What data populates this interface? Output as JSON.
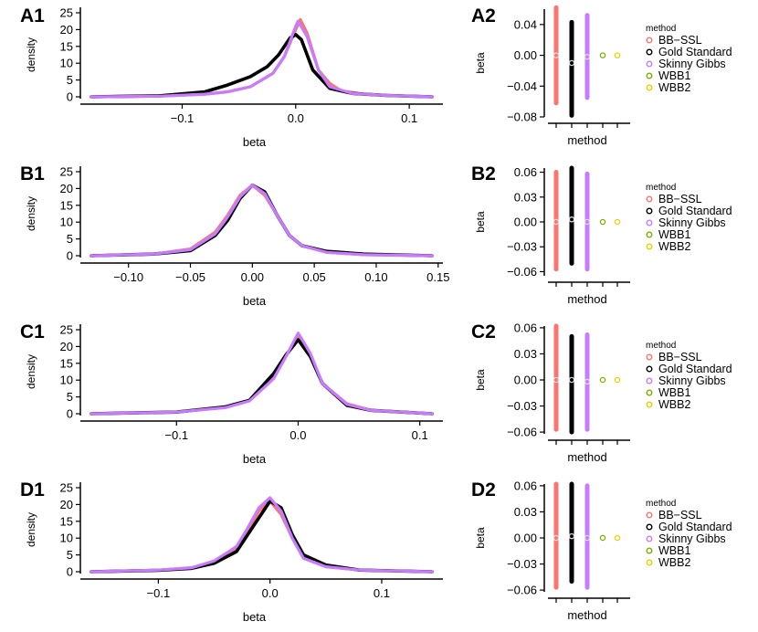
{
  "legend": {
    "title": "method",
    "items": [
      {
        "label": "BB−SSL",
        "color": "#F8766D"
      },
      {
        "label": "Gold Standard",
        "color": "#000000"
      },
      {
        "label": "Skinny Gibbs",
        "color": "#C77CFF"
      },
      {
        "label": "WBB1",
        "color": "#7CAE00"
      },
      {
        "label": "WBB2",
        "color": "#E7D000"
      }
    ]
  },
  "chart_data": [
    {
      "panel": "A1",
      "type": "line",
      "xlabel": "beta",
      "ylabel": "density",
      "xlim": [
        -0.18,
        0.12
      ],
      "ylim": [
        0,
        25
      ],
      "xticks": [
        -0.1,
        0.0,
        0.1
      ],
      "xtick_labels": [
        "−0.1",
        "0.0",
        "0.1"
      ],
      "yticks": [
        0,
        5,
        10,
        15,
        20,
        25
      ],
      "series": [
        {
          "name": "BB−SSL",
          "color": "#F8766D",
          "x": [
            -0.18,
            -0.12,
            -0.08,
            -0.06,
            -0.04,
            -0.02,
            -0.01,
            0.0,
            0.004,
            0.01,
            0.02,
            0.03,
            0.04,
            0.06,
            0.09,
            0.12
          ],
          "y": [
            0,
            0.2,
            0.8,
            1.5,
            3,
            7,
            12,
            20,
            23,
            19,
            8,
            4,
            1.8,
            0.8,
            0.3,
            0
          ]
        },
        {
          "name": "Gold Standard",
          "color": "#000000",
          "x": [
            -0.18,
            -0.12,
            -0.08,
            -0.06,
            -0.04,
            -0.025,
            -0.015,
            -0.005,
            0.0,
            0.005,
            0.015,
            0.03,
            0.05,
            0.08,
            0.12
          ],
          "y": [
            0,
            0.3,
            1.5,
            3.5,
            6,
            9,
            12.5,
            17.5,
            18.5,
            17,
            8,
            2.5,
            1,
            0.4,
            0
          ]
        },
        {
          "name": "Skinny Gibbs",
          "color": "#C77CFF",
          "x": [
            -0.18,
            -0.12,
            -0.08,
            -0.06,
            -0.04,
            -0.02,
            -0.01,
            0.0,
            0.002,
            0.01,
            0.02,
            0.03,
            0.05,
            0.08,
            0.12
          ],
          "y": [
            0,
            0.2,
            0.8,
            1.5,
            3,
            7,
            12,
            21,
            22.5,
            18,
            8,
            3,
            1,
            0.4,
            0
          ]
        }
      ],
      "interval": {
        "ylabel": "beta",
        "xlabel": "method",
        "ylim": [
          -0.08,
          0.06
        ],
        "yticks": [
          -0.08,
          -0.04,
          0.0,
          0.04
        ],
        "ytick_labels": [
          "−0.08",
          "−0.04",
          "0.00",
          "0.04"
        ],
        "methods": [
          "BB−SSL",
          "Gold Standard",
          "Skinny Gibbs",
          "WBB1",
          "WBB2"
        ],
        "low": [
          -0.062,
          -0.078,
          -0.055,
          null,
          null
        ],
        "high": [
          0.062,
          0.043,
          0.052,
          null,
          null
        ],
        "point": [
          0.0,
          -0.01,
          -0.002,
          0.0,
          0.0
        ]
      }
    },
    {
      "panel": "B1",
      "type": "line",
      "xlabel": "beta",
      "ylabel": "density",
      "xlim": [
        -0.13,
        0.145
      ],
      "ylim": [
        0,
        25
      ],
      "xticks": [
        -0.1,
        -0.05,
        0.0,
        0.05,
        0.1,
        0.15
      ],
      "xtick_labels": [
        "−0.10",
        "−0.05",
        "0.00",
        "0.05",
        "0.10",
        "0.15"
      ],
      "yticks": [
        0,
        5,
        10,
        15,
        20,
        25
      ],
      "series": [
        {
          "name": "BB−SSL",
          "color": "#F8766D",
          "x": [
            -0.13,
            -0.08,
            -0.05,
            -0.03,
            -0.02,
            -0.01,
            0.0,
            0.01,
            0.02,
            0.03,
            0.04,
            0.06,
            0.09,
            0.145
          ],
          "y": [
            0,
            0.5,
            2,
            7,
            12,
            18,
            21,
            18,
            12,
            6,
            3,
            1,
            0.3,
            0
          ]
        },
        {
          "name": "Gold Standard",
          "color": "#000000",
          "x": [
            -0.13,
            -0.08,
            -0.05,
            -0.03,
            -0.02,
            -0.01,
            0.0,
            0.01,
            0.02,
            0.03,
            0.04,
            0.06,
            0.09,
            0.145
          ],
          "y": [
            0,
            0.5,
            1.5,
            6,
            10.5,
            17,
            21,
            19,
            12,
            6,
            3,
            1.3,
            0.5,
            0
          ]
        },
        {
          "name": "Skinny Gibbs",
          "color": "#C77CFF",
          "x": [
            -0.13,
            -0.08,
            -0.05,
            -0.03,
            -0.02,
            -0.01,
            0.0,
            0.01,
            0.02,
            0.03,
            0.04,
            0.06,
            0.09,
            0.145
          ],
          "y": [
            0,
            0.5,
            1.8,
            6.5,
            11.5,
            17.5,
            21,
            18.5,
            12,
            6,
            3,
            1,
            0.3,
            0
          ]
        }
      ],
      "interval": {
        "ylabel": "beta",
        "xlabel": "method",
        "ylim": [
          -0.065,
          0.065
        ],
        "yticks": [
          -0.06,
          -0.03,
          0.0,
          0.03,
          0.06
        ],
        "ytick_labels": [
          "−0.06",
          "−0.03",
          "0.00",
          "0.03",
          "0.06"
        ],
        "methods": [
          "BB−SSL",
          "Gold Standard",
          "Skinny Gibbs",
          "WBB1",
          "WBB2"
        ],
        "low": [
          -0.057,
          -0.05,
          -0.057,
          null,
          null
        ],
        "high": [
          0.06,
          0.065,
          0.058,
          null,
          null
        ],
        "point": [
          0.0,
          0.003,
          0.0,
          0.0,
          0.0
        ]
      }
    },
    {
      "panel": "C1",
      "type": "line",
      "xlabel": "beta",
      "ylabel": "density",
      "xlim": [
        -0.17,
        0.11
      ],
      "ylim": [
        0,
        25
      ],
      "xticks": [
        -0.1,
        0.0,
        0.1
      ],
      "xtick_labels": [
        "−0.1",
        "0.0",
        "0.1"
      ],
      "yticks": [
        0,
        5,
        10,
        15,
        20,
        25
      ],
      "series": [
        {
          "name": "BB−SSL",
          "color": "#F8766D",
          "x": [
            -0.17,
            -0.1,
            -0.06,
            -0.04,
            -0.02,
            -0.01,
            0.0,
            0.01,
            0.02,
            0.04,
            0.06,
            0.11
          ],
          "y": [
            0,
            0.5,
            2,
            4,
            11,
            17,
            23,
            17,
            9,
            3,
            1,
            0
          ]
        },
        {
          "name": "Gold Standard",
          "color": "#000000",
          "x": [
            -0.17,
            -0.1,
            -0.06,
            -0.04,
            -0.02,
            -0.01,
            0.0,
            0.01,
            0.02,
            0.04,
            0.06,
            0.11
          ],
          "y": [
            0,
            0.5,
            2,
            4,
            12,
            17.5,
            22,
            17,
            9,
            2.5,
            1,
            0
          ]
        },
        {
          "name": "Skinny Gibbs",
          "color": "#C77CFF",
          "x": [
            -0.17,
            -0.1,
            -0.06,
            -0.04,
            -0.02,
            -0.01,
            0.0,
            0.01,
            0.02,
            0.04,
            0.06,
            0.11
          ],
          "y": [
            0,
            0.5,
            1.8,
            3.8,
            10.5,
            17,
            24,
            18,
            9,
            2.8,
            1,
            0
          ]
        }
      ],
      "interval": {
        "ylabel": "beta",
        "xlabel": "method",
        "ylim": [
          -0.062,
          0.062
        ],
        "yticks": [
          -0.06,
          -0.03,
          0.0,
          0.03,
          0.06
        ],
        "ytick_labels": [
          "−0.06",
          "−0.03",
          "0.00",
          "0.03",
          "0.06"
        ],
        "methods": [
          "BB−SSL",
          "Gold Standard",
          "Skinny Gibbs",
          "WBB1",
          "WBB2"
        ],
        "low": [
          -0.057,
          -0.06,
          -0.057,
          null,
          null
        ],
        "high": [
          0.062,
          0.05,
          0.052,
          null,
          null
        ],
        "point": [
          0.0,
          0.0,
          -0.002,
          0.0,
          0.0
        ]
      }
    },
    {
      "panel": "D1",
      "type": "line",
      "xlabel": "beta",
      "ylabel": "density",
      "xlim": [
        -0.16,
        0.145
      ],
      "ylim": [
        0,
        25
      ],
      "xticks": [
        -0.1,
        0.0,
        0.1
      ],
      "xtick_labels": [
        "−0.1",
        "0.0",
        "0.1"
      ],
      "yticks": [
        0,
        5,
        10,
        15,
        20,
        25
      ],
      "series": [
        {
          "name": "BB−SSL",
          "color": "#F8766D",
          "x": [
            -0.16,
            -0.1,
            -0.07,
            -0.05,
            -0.03,
            -0.02,
            -0.01,
            0.0,
            0.01,
            0.02,
            0.03,
            0.05,
            0.08,
            0.145
          ],
          "y": [
            0,
            0.5,
            1.2,
            3,
            7,
            12,
            18,
            21,
            17,
            10,
            4,
            1.5,
            0.5,
            0
          ]
        },
        {
          "name": "Gold Standard",
          "color": "#000000",
          "x": [
            -0.16,
            -0.1,
            -0.07,
            -0.05,
            -0.03,
            -0.02,
            -0.01,
            0.0,
            0.01,
            0.02,
            0.03,
            0.05,
            0.08,
            0.145
          ],
          "y": [
            0,
            0.4,
            1,
            2.5,
            6,
            11,
            16,
            21,
            19,
            11,
            5,
            2,
            0.5,
            0
          ]
        },
        {
          "name": "Skinny Gibbs",
          "color": "#C77CFF",
          "x": [
            -0.16,
            -0.1,
            -0.07,
            -0.05,
            -0.03,
            -0.02,
            -0.01,
            0.0,
            0.01,
            0.02,
            0.03,
            0.05,
            0.08,
            0.145
          ],
          "y": [
            0,
            0.5,
            1.2,
            3.2,
            7.5,
            13,
            19,
            22,
            18,
            10,
            4,
            1.5,
            0.5,
            0
          ]
        }
      ],
      "interval": {
        "ylabel": "beta",
        "xlabel": "method",
        "ylim": [
          -0.062,
          0.062
        ],
        "yticks": [
          -0.06,
          -0.03,
          0.0,
          0.03,
          0.06
        ],
        "ytick_labels": [
          "−0.06",
          "−0.03",
          "0.00",
          "0.03",
          "0.06"
        ],
        "methods": [
          "BB−SSL",
          "Gold Standard",
          "Skinny Gibbs",
          "WBB1",
          "WBB2"
        ],
        "low": [
          -0.057,
          -0.05,
          -0.057,
          null,
          null
        ],
        "high": [
          0.062,
          0.062,
          0.06,
          null,
          null
        ],
        "point": [
          0.0,
          0.002,
          0.0,
          0.0,
          0.0
        ]
      }
    }
  ]
}
